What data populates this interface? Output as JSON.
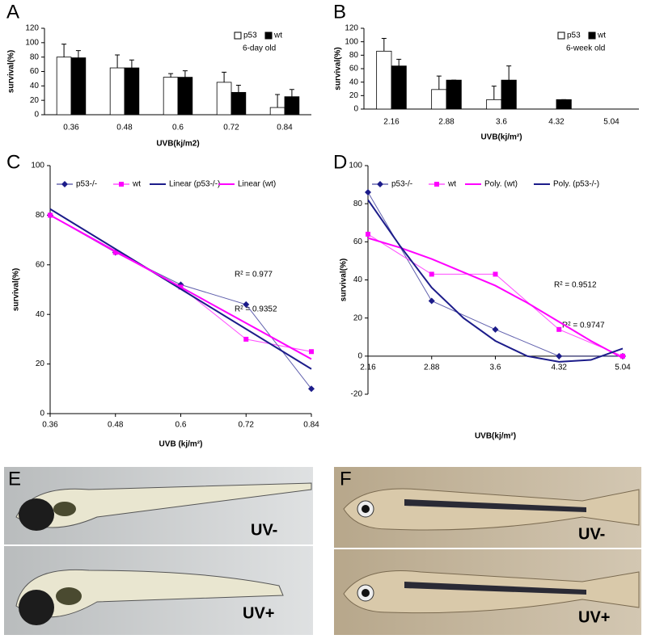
{
  "chart_data": [
    {
      "type": "bar",
      "panel": "A",
      "x_label": "UVB(kj/m2)",
      "y_label": "survival(%)",
      "categories": [
        "0.36",
        "0.48",
        "0.6",
        "0.72",
        "0.84"
      ],
      "series": [
        {
          "name": "p53",
          "color": "#ffffff",
          "values": [
            80,
            65,
            52,
            45,
            10
          ],
          "errors": [
            18,
            18,
            5,
            14,
            18
          ]
        },
        {
          "name": "wt",
          "color": "#000000",
          "values": [
            79,
            65,
            52,
            31,
            25
          ],
          "errors": [
            10,
            11,
            9,
            10,
            10
          ]
        }
      ],
      "ylim": [
        0,
        120
      ],
      "yticks": [
        0,
        20,
        40,
        60,
        80,
        100,
        120
      ],
      "annotations": [
        {
          "text": "6-day old",
          "color": "#000000"
        }
      ]
    },
    {
      "type": "bar",
      "panel": "B",
      "x_label": "UVB(kj/m²)",
      "y_label": "survival(%)",
      "categories": [
        "2.16",
        "2.88",
        "3.6",
        "4.32",
        "5.04"
      ],
      "series": [
        {
          "name": "p53",
          "color": "#ffffff",
          "values": [
            86,
            29,
            14,
            0,
            0
          ],
          "errors": [
            19,
            20,
            20,
            0,
            0
          ]
        },
        {
          "name": "wt",
          "color": "#000000",
          "values": [
            64,
            43,
            43,
            14,
            0
          ],
          "errors": [
            10,
            0,
            21,
            0,
            0
          ]
        }
      ],
      "ylim": [
        0,
        120
      ],
      "yticks": [
        0,
        20,
        40,
        60,
        80,
        100,
        120
      ],
      "annotations": [
        {
          "text": "6-week old",
          "color": "#000000"
        }
      ]
    },
    {
      "type": "line",
      "panel": "C",
      "x_label": "UVB (kj/m²)",
      "y_label": "survival(%)",
      "x": [
        0.36,
        0.48,
        0.6,
        0.72,
        0.84
      ],
      "series": [
        {
          "name": "p53-/-",
          "color": "#1c1c8a",
          "marker": "diamond",
          "values": [
            80,
            65,
            52,
            44,
            10
          ]
        },
        {
          "name": "wt",
          "color": "#ff00ff",
          "marker": "square",
          "values": [
            80,
            65,
            51,
            30,
            25
          ]
        },
        {
          "name": "Linear (p53-/-)",
          "color": "#1c1c8a",
          "x": [
            0.36,
            0.84
          ],
          "values": [
            82.5,
            18
          ]
        },
        {
          "name": "Linear (wt)",
          "color": "#ff00ff",
          "x": [
            0.36,
            0.84
          ],
          "values": [
            80,
            22
          ]
        }
      ],
      "xlim": [
        0.36,
        0.84
      ],
      "xticks": [
        0.36,
        0.48,
        0.6,
        0.72,
        0.84
      ],
      "ylim": [
        0,
        100
      ],
      "yticks": [
        0,
        20,
        40,
        60,
        80,
        100
      ],
      "annotations": [
        {
          "text": "R² = 0.977",
          "color": "#ff00ff"
        },
        {
          "text": "R² = 0.9352",
          "color": "#1c1c8a"
        }
      ]
    },
    {
      "type": "line",
      "panel": "D",
      "x_label": "UVB(kj/m²)",
      "y_label": "survival(%)",
      "x": [
        2.16,
        2.88,
        3.6,
        4.32,
        5.04
      ],
      "series": [
        {
          "name": "p53-/-",
          "color": "#1c1c8a",
          "marker": "diamond",
          "values": [
            86,
            29,
            14,
            0,
            0
          ]
        },
        {
          "name": "wt",
          "color": "#ff00ff",
          "marker": "square",
          "values": [
            64,
            43,
            43,
            14,
            0
          ]
        },
        {
          "name": "Poly. (wt)",
          "color": "#ff00ff",
          "x": [
            2.16,
            2.52,
            2.88,
            3.24,
            3.6,
            3.96,
            4.32,
            4.68,
            5.04
          ],
          "values": [
            62,
            57,
            51,
            44,
            37,
            28,
            18,
            8,
            -1
          ]
        },
        {
          "name": "Poly. (p53-/-)",
          "color": "#1c1c8a",
          "x": [
            2.16,
            2.52,
            2.88,
            3.24,
            3.6,
            3.96,
            4.32,
            4.68,
            5.04
          ],
          "values": [
            82,
            58,
            36,
            20,
            8,
            0,
            -3,
            -2,
            4
          ]
        }
      ],
      "xlim": [
        2.16,
        5.04
      ],
      "xticks": [
        2.16,
        2.88,
        3.6,
        4.32,
        5.04
      ],
      "ylim": [
        -20,
        100
      ],
      "yticks": [
        -20,
        0,
        20,
        40,
        60,
        80,
        100
      ],
      "annotations": [
        {
          "text": "R² = 0.9512",
          "color": "#000000"
        },
        {
          "text": "R² = 0.9747",
          "color": "#000000"
        }
      ]
    }
  ],
  "photos": [
    {
      "panel": "E",
      "top_label": "UV-",
      "bottom_label": "UV+"
    },
    {
      "panel": "F",
      "top_label": "UV-",
      "bottom_label": "UV+"
    }
  ]
}
